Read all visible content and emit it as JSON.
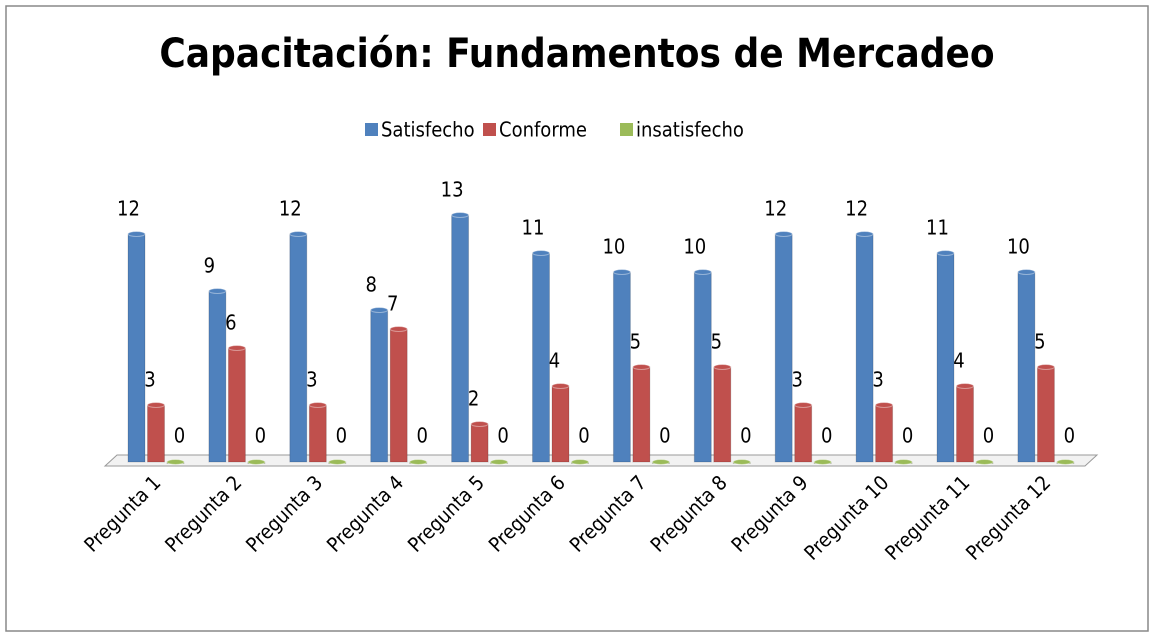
{
  "chart_data": {
    "type": "bar",
    "title": "Capacitación: Fundamentos de Mercadeo",
    "categories": [
      "Pregunta 1",
      "Pregunta 2",
      "Pregunta 3",
      "Pregunta 4",
      "Pregunta 5",
      "Pregunta 6",
      "Pregunta 7",
      "Pregunta 8",
      "Pregunta 9",
      "Pregunta 10",
      "Pregunta 11",
      "Pregunta 12"
    ],
    "series": [
      {
        "name": "Satisfecho",
        "color": "#4f81bd",
        "values": [
          12,
          9,
          12,
          8,
          13,
          11,
          10,
          10,
          12,
          12,
          11,
          10
        ]
      },
      {
        "name": "Conforme",
        "color": "#c0504d",
        "values": [
          3,
          6,
          3,
          7,
          2,
          4,
          5,
          5,
          3,
          3,
          4,
          5
        ]
      },
      {
        "name": "insatisfecho",
        "color": "#9bbb59",
        "values": [
          0,
          0,
          0,
          0,
          0,
          0,
          0,
          0,
          0,
          0,
          0,
          0
        ]
      }
    ],
    "legend": "top"
  }
}
